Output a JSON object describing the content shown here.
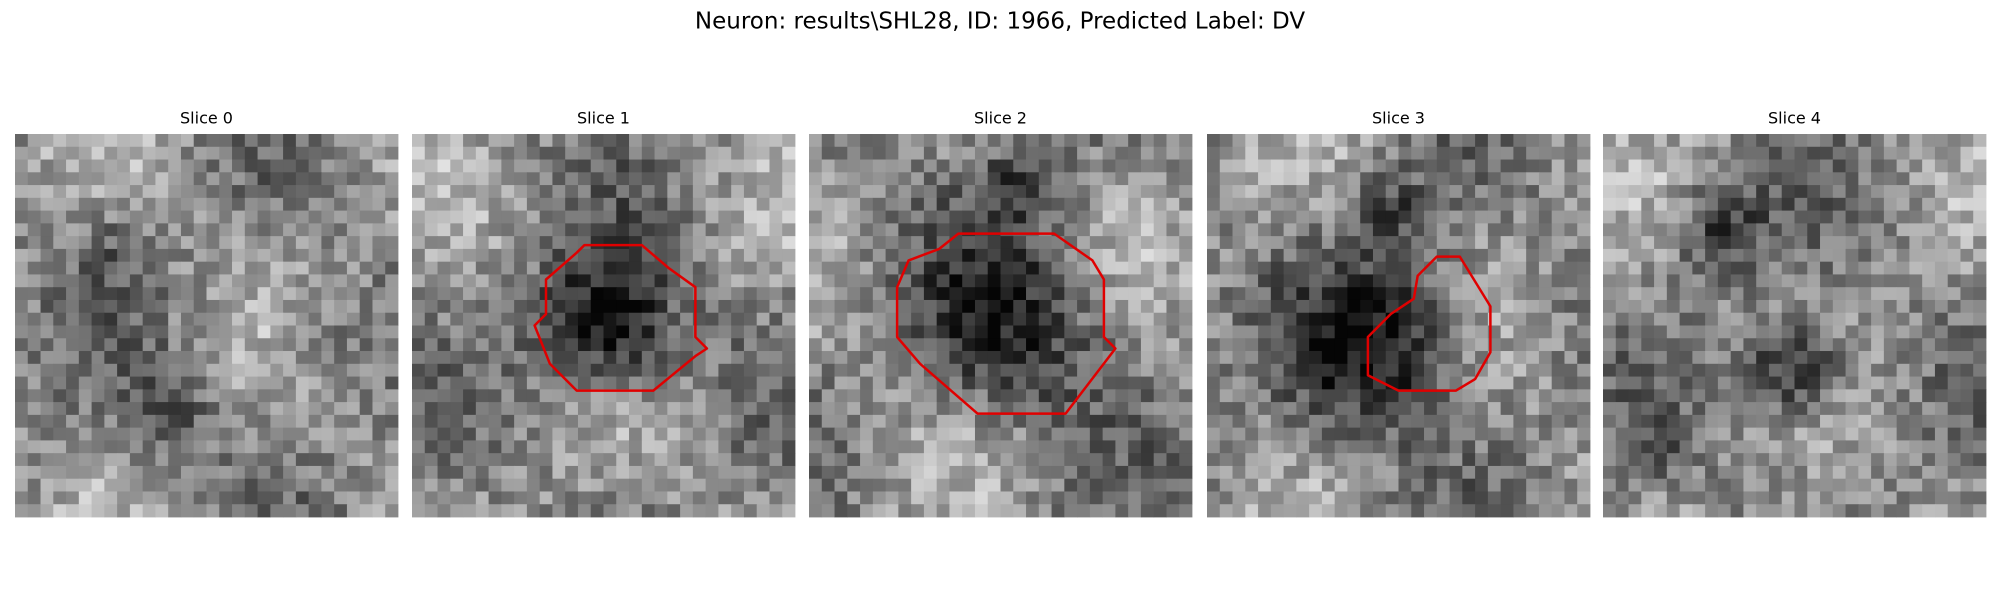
{
  "title": "Neuron: results\\SHL28, ID: 1966, Predicted Label: DV",
  "panels": [
    {
      "title": "Slice 0"
    },
    {
      "title": "Slice 1"
    },
    {
      "title": "Slice 2"
    },
    {
      "title": "Slice 3"
    },
    {
      "title": "Slice 4"
    }
  ]
}
